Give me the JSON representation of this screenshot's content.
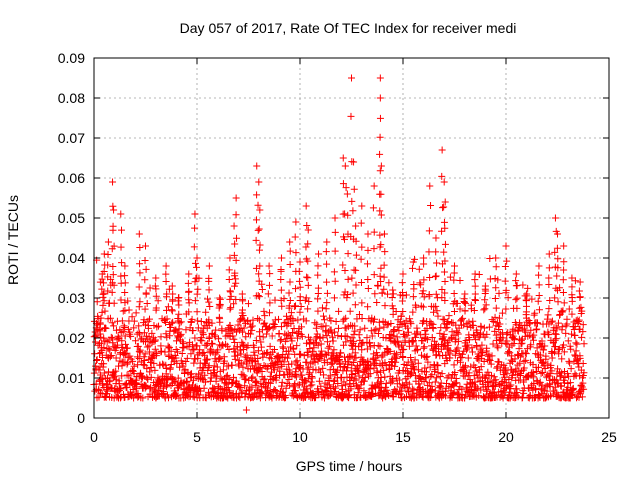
{
  "colors": {
    "series": "#ff0000",
    "grid": "#a0a0a0",
    "axis": "#000000"
  },
  "chart_data": {
    "type": "scatter",
    "title": "Day 057 of 2017, Rate Of TEC Index for receiver medi",
    "xlabel": "GPS time / hours",
    "ylabel": "ROTI / TECUs",
    "xlim": [
      0,
      25
    ],
    "ylim": [
      0,
      0.09
    ],
    "grid": true,
    "marker": "+",
    "x_ticks": [
      0,
      5,
      10,
      15,
      20,
      25
    ],
    "x_tick_labels": [
      "0",
      "5",
      "10",
      "15",
      "20",
      "25"
    ],
    "y_ticks": [
      0,
      0.01,
      0.02,
      0.03,
      0.04,
      0.05,
      0.06,
      0.07,
      0.08,
      0.09
    ],
    "y_tick_labels": [
      "0",
      "0.01",
      "0.02",
      "0.03",
      "0.04",
      "0.05",
      "0.06",
      "0.07",
      "0.08",
      "0.09"
    ],
    "series": [
      {
        "name": "ROTI",
        "x_range": [
          0,
          23.8
        ],
        "typical_range": [
          0.005,
          0.025
        ],
        "baseline_min": 0.003,
        "points": [
          [
            0.1,
            0.012
          ],
          [
            0.3,
            0.021
          ],
          [
            0.4,
            0.036
          ],
          [
            0.5,
            0.041
          ],
          [
            0.7,
            0.044
          ],
          [
            0.9,
            0.059
          ],
          [
            0.95,
            0.052
          ],
          [
            1.3,
            0.051
          ],
          [
            1.5,
            0.038
          ],
          [
            2.2,
            0.046
          ],
          [
            2.5,
            0.043
          ],
          [
            3.0,
            0.035
          ],
          [
            3.5,
            0.038
          ],
          [
            3.8,
            0.033
          ],
          [
            4.1,
            0.03
          ],
          [
            4.6,
            0.036
          ],
          [
            4.9,
            0.051
          ],
          [
            5.0,
            0.04
          ],
          [
            5.6,
            0.038
          ],
          [
            6.1,
            0.03
          ],
          [
            6.6,
            0.04
          ],
          [
            6.8,
            0.048
          ],
          [
            6.9,
            0.055
          ],
          [
            7.2,
            0.031
          ],
          [
            7.4,
            0.002
          ],
          [
            7.9,
            0.063
          ],
          [
            8.0,
            0.059
          ],
          [
            8.05,
            0.052
          ],
          [
            8.5,
            0.038
          ],
          [
            9.1,
            0.04
          ],
          [
            9.5,
            0.044
          ],
          [
            9.8,
            0.049
          ],
          [
            10.0,
            0.039
          ],
          [
            10.3,
            0.053
          ],
          [
            10.4,
            0.047
          ],
          [
            10.9,
            0.041
          ],
          [
            11.3,
            0.044
          ],
          [
            11.7,
            0.05
          ],
          [
            12.1,
            0.065
          ],
          [
            12.2,
            0.063
          ],
          [
            12.3,
            0.056
          ],
          [
            12.5,
            0.085
          ],
          [
            12.6,
            0.064
          ],
          [
            12.7,
            0.048
          ],
          [
            13.0,
            0.053
          ],
          [
            13.3,
            0.046
          ],
          [
            13.6,
            0.058
          ],
          [
            13.9,
            0.085
          ],
          [
            13.9,
            0.08
          ],
          [
            13.95,
            0.063
          ],
          [
            14.1,
            0.046
          ],
          [
            14.5,
            0.032
          ],
          [
            15.0,
            0.036
          ],
          [
            15.5,
            0.039
          ],
          [
            16.0,
            0.04
          ],
          [
            16.3,
            0.058
          ],
          [
            16.6,
            0.045
          ],
          [
            16.9,
            0.067
          ],
          [
            17.0,
            0.059
          ],
          [
            17.05,
            0.054
          ],
          [
            17.5,
            0.038
          ],
          [
            18.0,
            0.031
          ],
          [
            18.5,
            0.036
          ],
          [
            19.0,
            0.033
          ],
          [
            19.5,
            0.04
          ],
          [
            20.0,
            0.043
          ],
          [
            20.5,
            0.036
          ],
          [
            21.0,
            0.031
          ],
          [
            21.6,
            0.038
          ],
          [
            22.1,
            0.041
          ],
          [
            22.4,
            0.05
          ],
          [
            22.5,
            0.046
          ],
          [
            22.8,
            0.043
          ],
          [
            23.2,
            0.035
          ],
          [
            23.6,
            0.034
          ]
        ]
      }
    ]
  }
}
